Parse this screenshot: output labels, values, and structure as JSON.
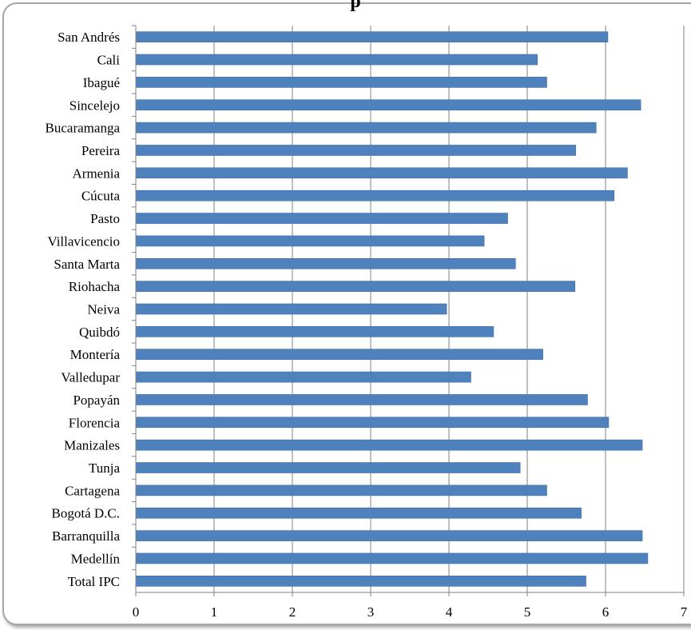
{
  "chart_data": {
    "type": "bar",
    "orientation": "horizontal",
    "title": "p",
    "categories": [
      "Total IPC",
      "Medellín",
      "Barranquilla",
      "Bogotá D.C.",
      "Cartagena",
      "Tunja",
      "Manizales",
      "Florencia",
      "Popayán",
      "Valledupar",
      "Montería",
      "Quibdó",
      "Neiva",
      "Riohacha",
      "Santa Marta",
      "Villavicencio",
      "Pasto",
      "Cúcuta",
      "Armenia",
      "Pereira",
      "Bucaramanga",
      "Sincelejo",
      "Ibagué",
      "Cali",
      "San Andrés"
    ],
    "values": [
      5.75,
      6.54,
      6.47,
      5.69,
      5.25,
      4.91,
      6.47,
      6.04,
      5.77,
      4.28,
      5.2,
      4.57,
      3.97,
      5.61,
      4.85,
      4.45,
      4.75,
      6.11,
      6.28,
      5.62,
      5.88,
      6.45,
      5.25,
      5.13,
      6.03
    ],
    "xlim": [
      0,
      7
    ],
    "xticks": [
      "0",
      "1",
      "2",
      "3",
      "4",
      "5",
      "6",
      "7"
    ],
    "grid": "vertical",
    "colors": {
      "bar": "#4f81bd",
      "bar_edge": "#3c6ea8",
      "grid": "#808080"
    }
  }
}
